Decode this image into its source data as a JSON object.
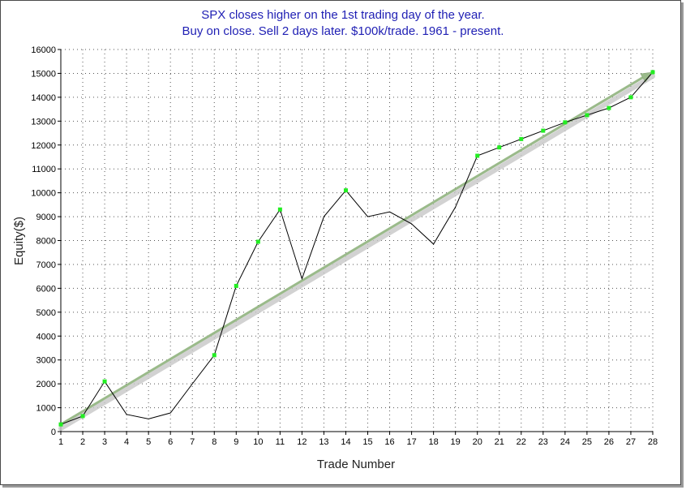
{
  "chart_data": {
    "type": "line",
    "title": "SPX closes higher on the 1st trading day of the year.",
    "subtitle": "Buy on close. Sell 2 days later. $100k/trade. 1961 - present.",
    "xlabel": "Trade Number",
    "ylabel": "Equity($)",
    "xlim": [
      1,
      28
    ],
    "ylim": [
      0,
      16000
    ],
    "x_ticks": [
      1,
      2,
      3,
      4,
      5,
      6,
      7,
      8,
      9,
      10,
      11,
      12,
      13,
      14,
      15,
      16,
      17,
      18,
      19,
      20,
      21,
      22,
      23,
      24,
      25,
      26,
      27,
      28
    ],
    "y_ticks": [
      0,
      1000,
      2000,
      3000,
      4000,
      5000,
      6000,
      7000,
      8000,
      9000,
      10000,
      11000,
      12000,
      13000,
      14000,
      15000,
      16000
    ],
    "grid": true,
    "series": [
      {
        "x": [
          1,
          2,
          3,
          4,
          5,
          6,
          7,
          8,
          9,
          10,
          11,
          12,
          13,
          14,
          15,
          16,
          17,
          18,
          19,
          20,
          21,
          22,
          23,
          24,
          25,
          26,
          27,
          28
        ],
        "values": [
          300,
          650,
          2100,
          720,
          530,
          780,
          2000,
          3200,
          6100,
          7950,
          9300,
          6400,
          9000,
          10100,
          9000,
          9200,
          8700,
          7850,
          9400,
          11550,
          11900,
          12250,
          12600,
          12950,
          13250,
          13550,
          14000,
          15050
        ],
        "color": "#000000",
        "marker_color": "#22ee22"
      }
    ],
    "trend_line": {
      "from": [
        1,
        300
      ],
      "to": [
        28,
        15050
      ],
      "color": "#9aba8a"
    }
  }
}
